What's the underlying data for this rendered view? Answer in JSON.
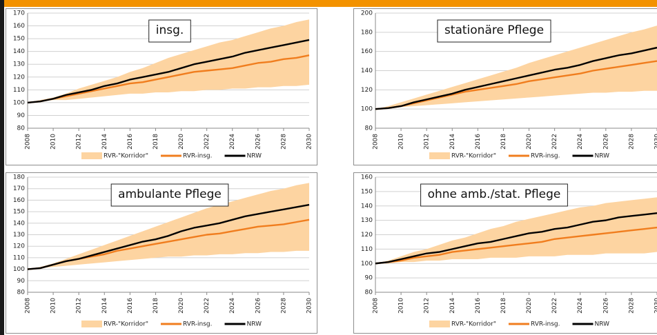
{
  "chart_data": [
    {
      "type": "line",
      "title": "insg.",
      "x": [
        2008,
        2009,
        2010,
        2011,
        2012,
        2013,
        2014,
        2015,
        2016,
        2017,
        2018,
        2019,
        2020,
        2021,
        2022,
        2023,
        2024,
        2025,
        2026,
        2027,
        2028,
        2029,
        2030
      ],
      "xlim": [
        2008,
        2030
      ],
      "xticks": [
        2008,
        2010,
        2012,
        2014,
        2016,
        2018,
        2020,
        2022,
        2024,
        2026,
        2028,
        2030
      ],
      "ylim": [
        80,
        170
      ],
      "yticks": [
        80,
        90,
        100,
        110,
        120,
        130,
        140,
        150,
        160,
        170
      ],
      "series": [
        {
          "name": "RVR-\"Korridor\"",
          "color": "#fdd4a1",
          "values": [
            100,
            102,
            104,
            107,
            111,
            114,
            117,
            120,
            124,
            127,
            131,
            135,
            138,
            141,
            144,
            147,
            149,
            152,
            155,
            158,
            160,
            163,
            165
          ],
          "lower": [
            100,
            101,
            102,
            102,
            103,
            104,
            105,
            106,
            107,
            107,
            108,
            108,
            109,
            109,
            110,
            110,
            111,
            111,
            112,
            112,
            113,
            113,
            114
          ]
        },
        {
          "name": "RVR-insg.",
          "color": "#f07d1e",
          "values": [
            100,
            101,
            103,
            105,
            107,
            109,
            111,
            113,
            115,
            116,
            118,
            120,
            122,
            124,
            125,
            126,
            127,
            129,
            131,
            132,
            134,
            135,
            137
          ]
        },
        {
          "name": "NRW",
          "color": "#000000",
          "values": [
            100,
            101,
            103,
            106,
            108,
            110,
            113,
            115,
            118,
            120,
            122,
            124,
            127,
            130,
            132,
            134,
            136,
            139,
            141,
            143,
            145,
            147,
            149
          ]
        }
      ]
    },
    {
      "type": "line",
      "title": "stationäre Pflege",
      "x": [
        2008,
        2009,
        2010,
        2011,
        2012,
        2013,
        2014,
        2015,
        2016,
        2017,
        2018,
        2019,
        2020,
        2021,
        2022,
        2023,
        2024,
        2025,
        2026,
        2027,
        2028,
        2029,
        2030
      ],
      "xlim": [
        2008,
        2030
      ],
      "xticks": [
        2008,
        2010,
        2012,
        2014,
        2016,
        2018,
        2020,
        2022,
        2024,
        2026,
        2028,
        2030
      ],
      "ylim": [
        80,
        200
      ],
      "yticks": [
        80,
        100,
        120,
        140,
        160,
        180,
        200
      ],
      "series": [
        {
          "name": "RVR-\"Korridor\"",
          "color": "#fdd4a1",
          "values": [
            100,
            103,
            107,
            111,
            115,
            119,
            123,
            127,
            131,
            135,
            139,
            143,
            148,
            152,
            156,
            160,
            164,
            168,
            172,
            176,
            180,
            183,
            187
          ],
          "lower": [
            100,
            101,
            102,
            103,
            104,
            105,
            106,
            107,
            108,
            109,
            110,
            111,
            112,
            113,
            114,
            115,
            116,
            117,
            117,
            118,
            118,
            119,
            119
          ]
        },
        {
          "name": "RVR-insg.",
          "color": "#f07d1e",
          "values": [
            100,
            101,
            103,
            106,
            109,
            112,
            115,
            118,
            120,
            122,
            124,
            126,
            129,
            131,
            133,
            135,
            137,
            140,
            142,
            144,
            146,
            148,
            150
          ]
        },
        {
          "name": "NRW",
          "color": "#000000",
          "values": [
            100,
            101,
            103,
            107,
            110,
            113,
            116,
            120,
            123,
            126,
            129,
            132,
            135,
            138,
            141,
            143,
            146,
            150,
            153,
            156,
            158,
            161,
            164
          ]
        }
      ]
    },
    {
      "type": "line",
      "title": "ambulante Pflege",
      "x": [
        2008,
        2009,
        2010,
        2011,
        2012,
        2013,
        2014,
        2015,
        2016,
        2017,
        2018,
        2019,
        2020,
        2021,
        2022,
        2023,
        2024,
        2025,
        2026,
        2027,
        2028,
        2029,
        2030
      ],
      "xlim": [
        2008,
        2030
      ],
      "xticks": [
        2008,
        2010,
        2012,
        2014,
        2016,
        2018,
        2020,
        2022,
        2024,
        2026,
        2028,
        2030
      ],
      "ylim": [
        80,
        180
      ],
      "yticks": [
        80,
        90,
        100,
        110,
        120,
        130,
        140,
        150,
        160,
        170,
        180
      ],
      "series": [
        {
          "name": "RVR-\"Korridor\"",
          "color": "#fdd4a1",
          "values": [
            100,
            102,
            105,
            109,
            113,
            117,
            121,
            125,
            129,
            133,
            137,
            141,
            145,
            149,
            153,
            156,
            159,
            162,
            165,
            168,
            170,
            173,
            175
          ],
          "lower": [
            100,
            101,
            102,
            103,
            104,
            105,
            106,
            107,
            108,
            109,
            110,
            111,
            111,
            112,
            112,
            113,
            113,
            114,
            114,
            115,
            115,
            116,
            116
          ]
        },
        {
          "name": "RVR-insg.",
          "color": "#f07d1e",
          "values": [
            100,
            101,
            104,
            107,
            109,
            111,
            113,
            116,
            118,
            120,
            122,
            124,
            126,
            128,
            130,
            131,
            133,
            135,
            137,
            138,
            139,
            141,
            143
          ]
        },
        {
          "name": "NRW",
          "color": "#000000",
          "values": [
            100,
            101,
            104,
            107,
            109,
            112,
            115,
            118,
            121,
            124,
            126,
            129,
            133,
            136,
            138,
            140,
            143,
            146,
            148,
            150,
            152,
            154,
            156
          ]
        }
      ]
    },
    {
      "type": "line",
      "title": "ohne amb./stat. Pflege",
      "x": [
        2008,
        2009,
        2010,
        2011,
        2012,
        2013,
        2014,
        2015,
        2016,
        2017,
        2018,
        2019,
        2020,
        2021,
        2022,
        2023,
        2024,
        2025,
        2026,
        2027,
        2028,
        2029,
        2030
      ],
      "xlim": [
        2008,
        2030
      ],
      "xticks": [
        2008,
        2010,
        2012,
        2014,
        2016,
        2018,
        2020,
        2022,
        2024,
        2026,
        2028,
        2030
      ],
      "ylim": [
        80,
        160
      ],
      "yticks": [
        80,
        90,
        100,
        110,
        120,
        130,
        140,
        150,
        160
      ],
      "series": [
        {
          "name": "RVR-\"Korridor\"",
          "color": "#fdd4a1",
          "values": [
            100,
            102,
            105,
            108,
            110,
            113,
            116,
            118,
            121,
            124,
            126,
            129,
            131,
            133,
            135,
            137,
            139,
            140,
            142,
            143,
            144,
            145,
            146
          ],
          "lower": [
            100,
            100,
            101,
            101,
            102,
            102,
            103,
            103,
            103,
            104,
            104,
            104,
            105,
            105,
            105,
            106,
            106,
            106,
            107,
            107,
            107,
            107,
            108
          ]
        },
        {
          "name": "RVR-insg.",
          "color": "#f07d1e",
          "values": [
            100,
            101,
            102,
            104,
            105,
            106,
            108,
            109,
            110,
            111,
            112,
            113,
            114,
            115,
            117,
            118,
            119,
            120,
            121,
            122,
            123,
            124,
            125
          ]
        },
        {
          "name": "NRW",
          "color": "#000000",
          "values": [
            100,
            101,
            103,
            105,
            107,
            108,
            110,
            112,
            114,
            115,
            117,
            119,
            121,
            122,
            124,
            125,
            127,
            129,
            130,
            132,
            133,
            134,
            135
          ]
        }
      ]
    }
  ]
}
